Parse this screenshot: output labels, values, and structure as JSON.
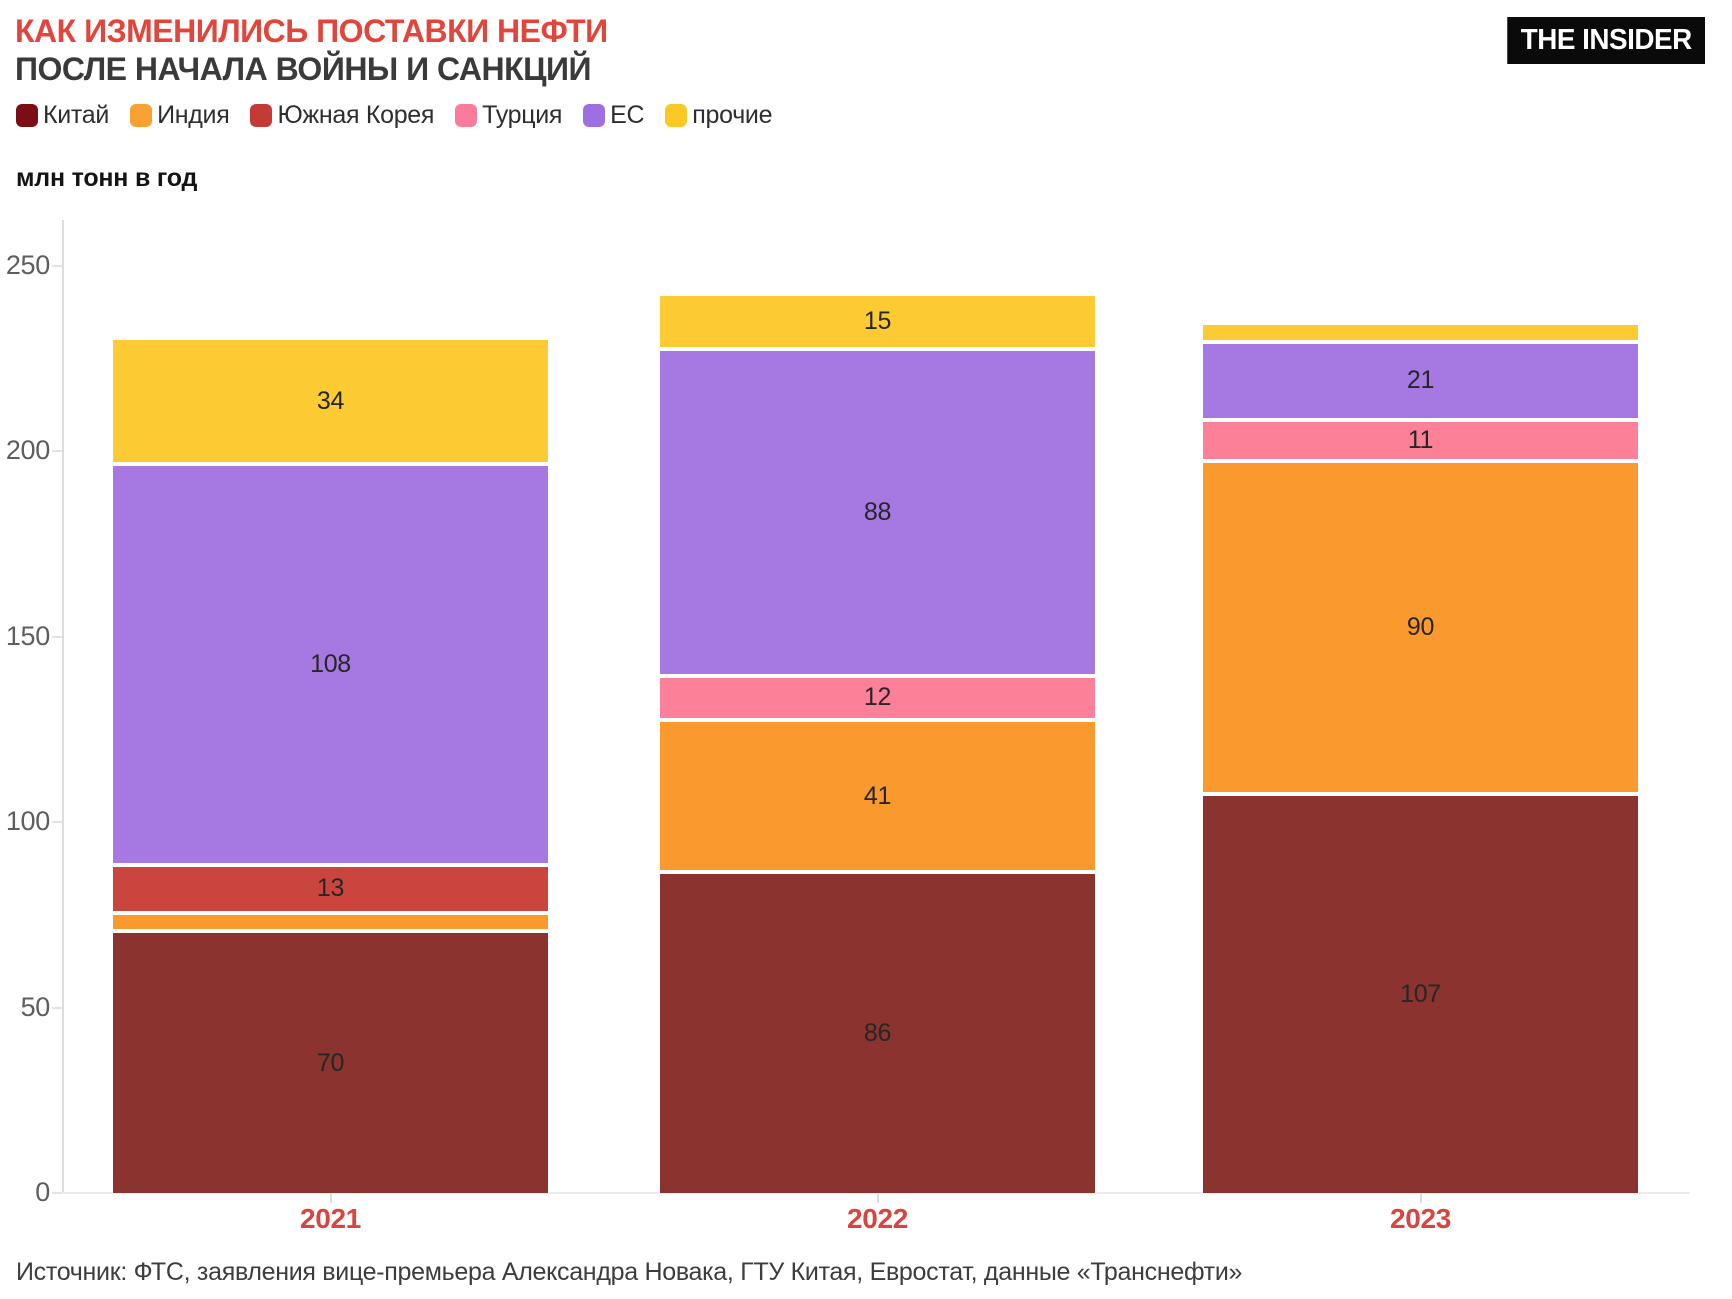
{
  "colors": {
    "accent-red": "#E0463B",
    "title-dark": "#3A3A3A",
    "axis-line": "#DCDCDC",
    "tick-text": "#5E5E5E",
    "label-text": "#262626",
    "year-red": "#D8443E",
    "source-text": "#3D3D3D",
    "logo-bg": "#0A0A0A",
    "logo-text": "#FFFFFF"
  },
  "header": {
    "title_line1": "КАК ИЗМЕНИЛИСЬ ПОСТАВКИ НЕФТИ",
    "title_line2": "ПОСЛЕ НАЧАЛА ВОЙНЫ И САНКЦИЙ",
    "logo_text": "THE INSIDER"
  },
  "units_label": "млн тонн в год",
  "source_line": "Источник: ФТС, заявления вице-премьера Александра Новака, ГТУ Китая, Евростат, данные «Транснефти»",
  "chart_data": {
    "type": "bar",
    "stacked": true,
    "title": "КАК ИЗМЕНИЛИСЬ ПОСТАВКИ НЕФТИ ПОСЛЕ НАЧАЛА ВОЙНЫ И САНКЦИЙ",
    "ylabel": "млн тонн в год",
    "categories": [
      "2021",
      "2022",
      "2023"
    ],
    "series": [
      {
        "name": "Китай",
        "color": "#8B332E",
        "legend_color": "#7B0D16",
        "values": [
          70,
          86,
          107
        ]
      },
      {
        "name": "Индия",
        "color": "#F9992E",
        "legend_color": "#F9A231",
        "values": [
          5,
          41,
          90
        ]
      },
      {
        "name": "Южная Корея",
        "color": "#CB453F",
        "legend_color": "#C43A35",
        "values": [
          13,
          0,
          0
        ]
      },
      {
        "name": "Турция",
        "color": "#FB8098",
        "legend_color": "#F97C9C",
        "values": [
          0,
          12,
          11
        ]
      },
      {
        "name": "ЕС",
        "color": "#A678E2",
        "legend_color": "#9D6FE0",
        "values": [
          108,
          88,
          21
        ]
      },
      {
        "name": "прочие",
        "color": "#FCCA33",
        "legend_color": "#FBC926",
        "values": [
          34,
          15,
          5
        ]
      }
    ],
    "totals": [
      230,
      242,
      234
    ],
    "yticks": [
      0,
      50,
      100,
      150,
      200,
      250
    ],
    "ylim": [
      0,
      262
    ],
    "grid": false,
    "legend_position": "top",
    "value_labels_shown_min": 10
  }
}
